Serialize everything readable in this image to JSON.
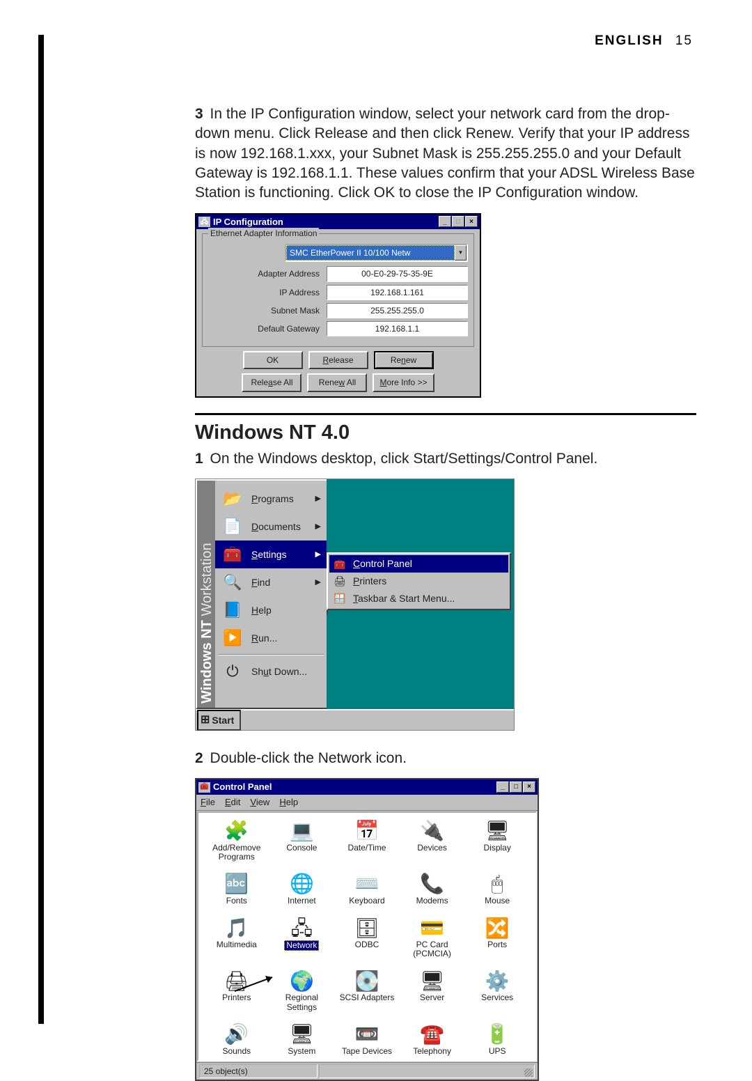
{
  "header": {
    "language": "ENGLISH",
    "page_number": "15"
  },
  "step3": {
    "num": "3",
    "text": "In the IP Configuration window, select your network card from the drop-down menu. Click Release and then click Renew. Verify that your IP address is now 192.168.1.xxx, your Subnet Mask is 255.255.255.0 and your Default Gateway is 192.168.1.1. These values confirm that your ADSL Wireless Base Station is functioning. Click OK to close the IP Configuration window."
  },
  "ipconfig": {
    "title": "IP Configuration",
    "group_label": "Ethernet Adapter Information",
    "adapter": "SMC EtherPower II 10/100 Netw",
    "rows": [
      {
        "label": "Adapter Address",
        "value": "00-E0-29-75-35-9E"
      },
      {
        "label": "IP Address",
        "value": "192.168.1.161"
      },
      {
        "label": "Subnet Mask",
        "value": "255.255.255.0"
      },
      {
        "label": "Default Gateway",
        "value": "192.168.1.1"
      }
    ],
    "buttons_row1": {
      "ok": "OK",
      "release": "Release",
      "renew": "Renew"
    },
    "buttons_row2": {
      "release_all": "Release All",
      "renew_all": "Renew All",
      "more": "More Info >>"
    }
  },
  "section_nt": {
    "heading": "Windows NT 4.0"
  },
  "step1": {
    "num": "1",
    "text": "On the Windows desktop, click Start/Settings/Control Panel."
  },
  "startmenu": {
    "banner_bold": "Windows NT",
    "banner_light": " Workstation",
    "items": [
      {
        "icon": "📂",
        "label": "Programs",
        "arrow": true,
        "hl": false
      },
      {
        "icon": "📄",
        "label": "Documents",
        "arrow": true,
        "hl": false
      },
      {
        "icon": "🧰",
        "label": "Settings",
        "arrow": true,
        "hl": true
      },
      {
        "icon": "🔍",
        "label": "Find",
        "arrow": true,
        "hl": false
      },
      {
        "icon": "📘",
        "label": "Help",
        "arrow": false,
        "hl": false
      },
      {
        "icon": "▶️",
        "label": "Run...",
        "arrow": false,
        "hl": false
      }
    ],
    "shutdown": {
      "icon": "⏻",
      "label": "Shut Down..."
    },
    "submenu": [
      {
        "icon": "🧰",
        "label": "Control Panel",
        "hl": true
      },
      {
        "icon": "🖨",
        "label": "Printers",
        "hl": false
      },
      {
        "icon": "🪟",
        "label": "Taskbar & Start Menu...",
        "hl": false
      }
    ],
    "start_label": "Start"
  },
  "step2": {
    "num": "2",
    "text": "Double-click the Network icon."
  },
  "cpanel": {
    "title": "Control Panel",
    "menus": [
      "File",
      "Edit",
      "View",
      "Help"
    ],
    "icons": [
      {
        "glyph": "🧩",
        "label": "Add/Remove\nPrograms"
      },
      {
        "glyph": "💻",
        "label": "Console"
      },
      {
        "glyph": "📅",
        "label": "Date/Time"
      },
      {
        "glyph": "🔌",
        "label": "Devices"
      },
      {
        "glyph": "🖥",
        "label": "Display"
      },
      {
        "glyph": "🔤",
        "label": "Fonts"
      },
      {
        "glyph": "🌐",
        "label": "Internet"
      },
      {
        "glyph": "⌨️",
        "label": "Keyboard"
      },
      {
        "glyph": "📞",
        "label": "Modems"
      },
      {
        "glyph": "🖱",
        "label": "Mouse"
      },
      {
        "glyph": "🎵",
        "label": "Multimedia"
      },
      {
        "glyph": "🖧",
        "label": "Network",
        "selected": true
      },
      {
        "glyph": "🗄",
        "label": "ODBC"
      },
      {
        "glyph": "💳",
        "label": "PC Card\n(PCMCIA)"
      },
      {
        "glyph": "🔀",
        "label": "Ports"
      },
      {
        "glyph": "🖨",
        "label": "Printers"
      },
      {
        "glyph": "🌍",
        "label": "Regional\nSettings"
      },
      {
        "glyph": "💽",
        "label": "SCSI Adapters"
      },
      {
        "glyph": "🖥",
        "label": "Server"
      },
      {
        "glyph": "⚙️",
        "label": "Services"
      },
      {
        "glyph": "🔊",
        "label": "Sounds"
      },
      {
        "glyph": "🖥",
        "label": "System"
      },
      {
        "glyph": "📼",
        "label": "Tape Devices"
      },
      {
        "glyph": "☎️",
        "label": "Telephony"
      },
      {
        "glyph": "🔋",
        "label": "UPS"
      }
    ],
    "status": "25 object(s)"
  },
  "colors": {
    "titlebar": "#000080",
    "highlight": "#000080",
    "win_bg": "#c0c0c0",
    "desktop": "#008080"
  }
}
